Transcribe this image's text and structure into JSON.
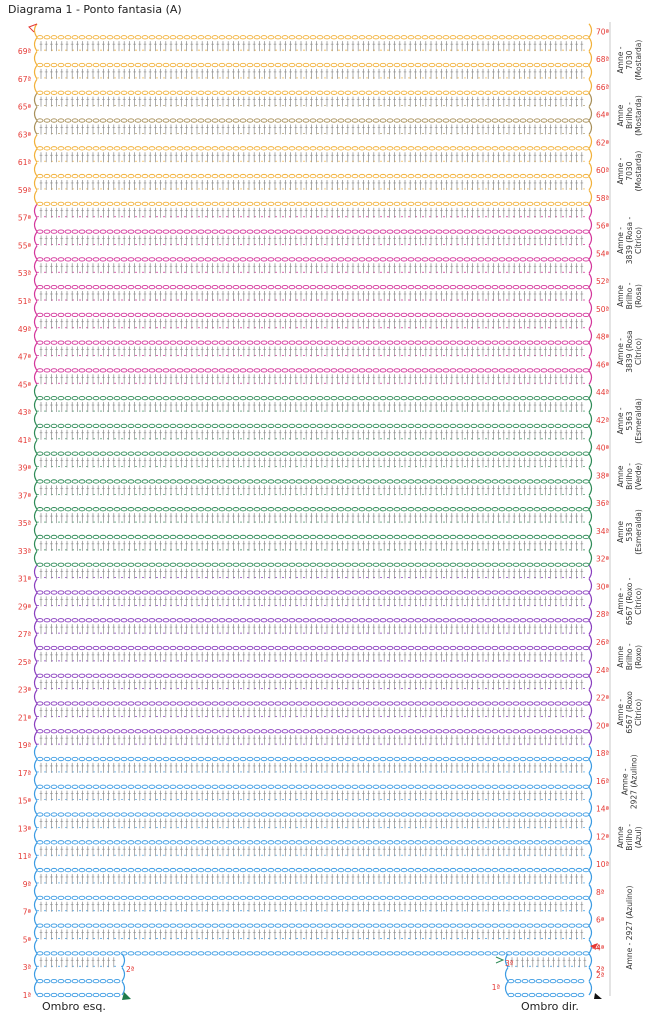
{
  "title": "Diagrama 1 - Ponto fantasia (A)",
  "colors": {
    "yellow": "#f2b13a",
    "gold": "#a8905a",
    "pink": "#d4369b",
    "green": "#2e8b57",
    "purple": "#8a3fbf",
    "blue": "#3b9be3",
    "row_number": "#e53935",
    "stitch": "#8a8a8a"
  },
  "rows": [
    {
      "n": 1,
      "color": "blue"
    },
    {
      "n": 2,
      "color": "blue"
    },
    {
      "n": 3,
      "color": "blue"
    },
    {
      "n": 4,
      "color": "blue"
    },
    {
      "n": 5,
      "color": "blue"
    },
    {
      "n": 6,
      "color": "blue"
    },
    {
      "n": 7,
      "color": "blue"
    },
    {
      "n": 8,
      "color": "blue"
    },
    {
      "n": 9,
      "color": "blue"
    },
    {
      "n": 10,
      "color": "blue"
    },
    {
      "n": 11,
      "color": "blue"
    },
    {
      "n": 12,
      "color": "blue"
    },
    {
      "n": 13,
      "color": "blue"
    },
    {
      "n": 14,
      "color": "blue"
    },
    {
      "n": 15,
      "color": "blue"
    },
    {
      "n": 16,
      "color": "blue"
    },
    {
      "n": 17,
      "color": "blue"
    },
    {
      "n": 18,
      "color": "blue"
    },
    {
      "n": 19,
      "color": "purple"
    },
    {
      "n": 20,
      "color": "purple"
    },
    {
      "n": 21,
      "color": "purple"
    },
    {
      "n": 22,
      "color": "purple"
    },
    {
      "n": 23,
      "color": "purple"
    },
    {
      "n": 24,
      "color": "purple"
    },
    {
      "n": 25,
      "color": "purple"
    },
    {
      "n": 26,
      "color": "purple"
    },
    {
      "n": 27,
      "color": "purple"
    },
    {
      "n": 28,
      "color": "purple"
    },
    {
      "n": 29,
      "color": "purple"
    },
    {
      "n": 30,
      "color": "purple"
    },
    {
      "n": 31,
      "color": "purple"
    },
    {
      "n": 32,
      "color": "green"
    },
    {
      "n": 33,
      "color": "green"
    },
    {
      "n": 34,
      "color": "green"
    },
    {
      "n": 35,
      "color": "green"
    },
    {
      "n": 36,
      "color": "green"
    },
    {
      "n": 37,
      "color": "green"
    },
    {
      "n": 38,
      "color": "green"
    },
    {
      "n": 39,
      "color": "green"
    },
    {
      "n": 40,
      "color": "green"
    },
    {
      "n": 41,
      "color": "green"
    },
    {
      "n": 42,
      "color": "green"
    },
    {
      "n": 43,
      "color": "green"
    },
    {
      "n": 44,
      "color": "green"
    },
    {
      "n": 45,
      "color": "pink"
    },
    {
      "n": 46,
      "color": "pink"
    },
    {
      "n": 47,
      "color": "pink"
    },
    {
      "n": 48,
      "color": "pink"
    },
    {
      "n": 49,
      "color": "pink"
    },
    {
      "n": 50,
      "color": "pink"
    },
    {
      "n": 51,
      "color": "pink"
    },
    {
      "n": 52,
      "color": "pink"
    },
    {
      "n": 53,
      "color": "pink"
    },
    {
      "n": 54,
      "color": "pink"
    },
    {
      "n": 55,
      "color": "pink"
    },
    {
      "n": 56,
      "color": "pink"
    },
    {
      "n": 57,
      "color": "pink"
    },
    {
      "n": 58,
      "color": "yellow"
    },
    {
      "n": 59,
      "color": "yellow"
    },
    {
      "n": 60,
      "color": "yellow"
    },
    {
      "n": 61,
      "color": "yellow"
    },
    {
      "n": 62,
      "color": "yellow"
    },
    {
      "n": 63,
      "color": "gold"
    },
    {
      "n": 64,
      "color": "gold"
    },
    {
      "n": 65,
      "color": "gold"
    },
    {
      "n": 66,
      "color": "yellow"
    },
    {
      "n": 67,
      "color": "yellow"
    },
    {
      "n": 68,
      "color": "yellow"
    },
    {
      "n": 69,
      "color": "yellow"
    },
    {
      "n": 70,
      "color": "yellow"
    }
  ],
  "row_labels": [
    "1ª",
    "2ª",
    "3ª",
    "4ª",
    "5ª",
    "6ª",
    "7ª",
    "8ª",
    "9ª",
    "10ª",
    "11ª",
    "12ª",
    "13ª",
    "14ª",
    "15ª",
    "16ª",
    "17ª",
    "18ª",
    "19ª",
    "20ª",
    "21ª",
    "22ª",
    "23ª",
    "24ª",
    "25ª",
    "26ª",
    "27ª",
    "28ª",
    "29ª",
    "30ª",
    "31ª",
    "32ª",
    "33ª",
    "34ª",
    "35ª",
    "36ª",
    "37ª",
    "38ª",
    "39ª",
    "40ª",
    "41ª",
    "42ª",
    "43ª",
    "44ª",
    "45ª",
    "46ª",
    "47ª",
    "48ª",
    "49ª",
    "50ª",
    "51ª",
    "52ª",
    "53ª",
    "54ª",
    "55ª",
    "56ª",
    "57ª",
    "58ª",
    "59ª",
    "60ª",
    "61ª",
    "62ª",
    "63ª",
    "64ª",
    "65ª",
    "66ª",
    "67ª",
    "68ª",
    "69ª",
    "70ª"
  ],
  "yarn_bands": [
    {
      "from": 1,
      "to": 10,
      "lines": [
        "Amne - 2927 (Azulino)"
      ]
    },
    {
      "from": 11,
      "to": 13,
      "lines": [
        "Amne",
        "Brilho -",
        "(Azul)"
      ]
    },
    {
      "from": 14,
      "to": 18,
      "lines": [
        "Amne -",
        "2927 (Azulino)"
      ]
    },
    {
      "from": 19,
      "to": 23,
      "lines": [
        "Amne -",
        "6567 (Roxo",
        "Cítrico)"
      ]
    },
    {
      "from": 24,
      "to": 26,
      "lines": [
        "Amne",
        "Brilho -",
        "(Roxo)"
      ]
    },
    {
      "from": 27,
      "to": 31,
      "lines": [
        "Amne -",
        "6567 (Roxo -",
        "Cítrico)"
      ]
    },
    {
      "from": 32,
      "to": 36,
      "lines": [
        "Amne",
        "5363",
        "(Esmeralda)"
      ]
    },
    {
      "from": 37,
      "to": 39,
      "lines": [
        "Amne",
        "Brilho -",
        "(Verde)"
      ]
    },
    {
      "from": 40,
      "to": 44,
      "lines": [
        "Amne -",
        "5363",
        "(Esmeralda)"
      ]
    },
    {
      "from": 45,
      "to": 49,
      "lines": [
        "Amne -",
        "3839 (Rosa",
        "Cítrico)"
      ]
    },
    {
      "from": 50,
      "to": 52,
      "lines": [
        "Amne",
        "Brilho -",
        "(Rosa)"
      ]
    },
    {
      "from": 53,
      "to": 57,
      "lines": [
        "Amne -",
        "3839 (Rosa -",
        "Cítrico)"
      ]
    },
    {
      "from": 58,
      "to": 62,
      "lines": [
        "Amne -",
        "7030",
        "(Mostarda)"
      ]
    },
    {
      "from": 63,
      "to": 65,
      "lines": [
        "Amne",
        "Brilho -",
        "(Mostarda)"
      ]
    },
    {
      "from": 66,
      "to": 70,
      "lines": [
        "Amne -",
        "7030",
        "(Mostarda)"
      ]
    }
  ],
  "shoulders": {
    "left": "Ombro esq.",
    "right": "Ombro dir."
  },
  "shoulder_row_labels": {
    "left_2": "2ª",
    "right_3": "3ª",
    "right_4": "4ª",
    "right_2": "2ª",
    "right_1": "1ª"
  }
}
